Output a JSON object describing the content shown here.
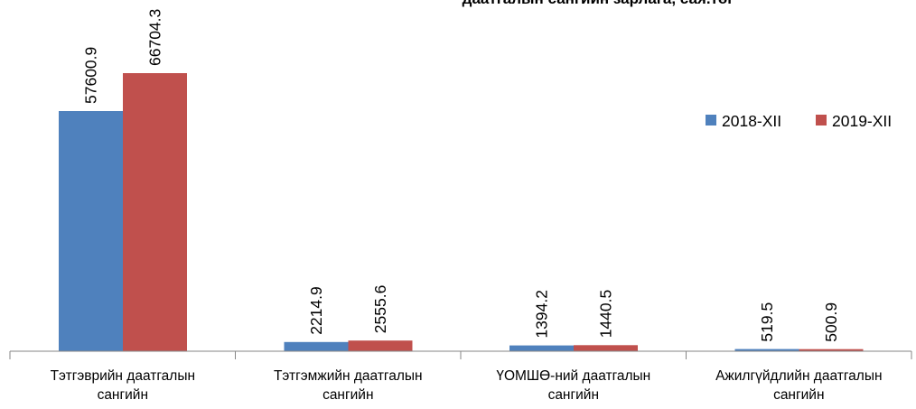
{
  "chart_data": {
    "type": "bar",
    "title": "даатгалын сангийн зарлага, сая.төг",
    "categories": [
      [
        "Тэтгэврийн даатгалын",
        "сангийн"
      ],
      [
        "Тэтгэмжийн даатгалын",
        "сангийн"
      ],
      [
        "ҮОМШӨ-ний даатгалын",
        "сангийн"
      ],
      [
        "Ажилгүйдлийн даатгалын",
        "сангийн"
      ]
    ],
    "series": [
      {
        "name": "2018-XII",
        "color": "#4F81BD",
        "values": [
          57600.9,
          2214.9,
          1394.2,
          519.5
        ],
        "labels": [
          "57600.9",
          "2214.9",
          "1394.2",
          "519.5"
        ]
      },
      {
        "name": "2019-XII",
        "color": "#C0504D",
        "values": [
          66704.3,
          2555.6,
          1440.5,
          500.9
        ],
        "labels": [
          "66704.3",
          "2555.6",
          "1440.5",
          "500.9"
        ]
      }
    ],
    "ylim": [
      0,
      80000
    ],
    "grid": false,
    "legend": "right",
    "data_labels": "rotated-vertical"
  }
}
